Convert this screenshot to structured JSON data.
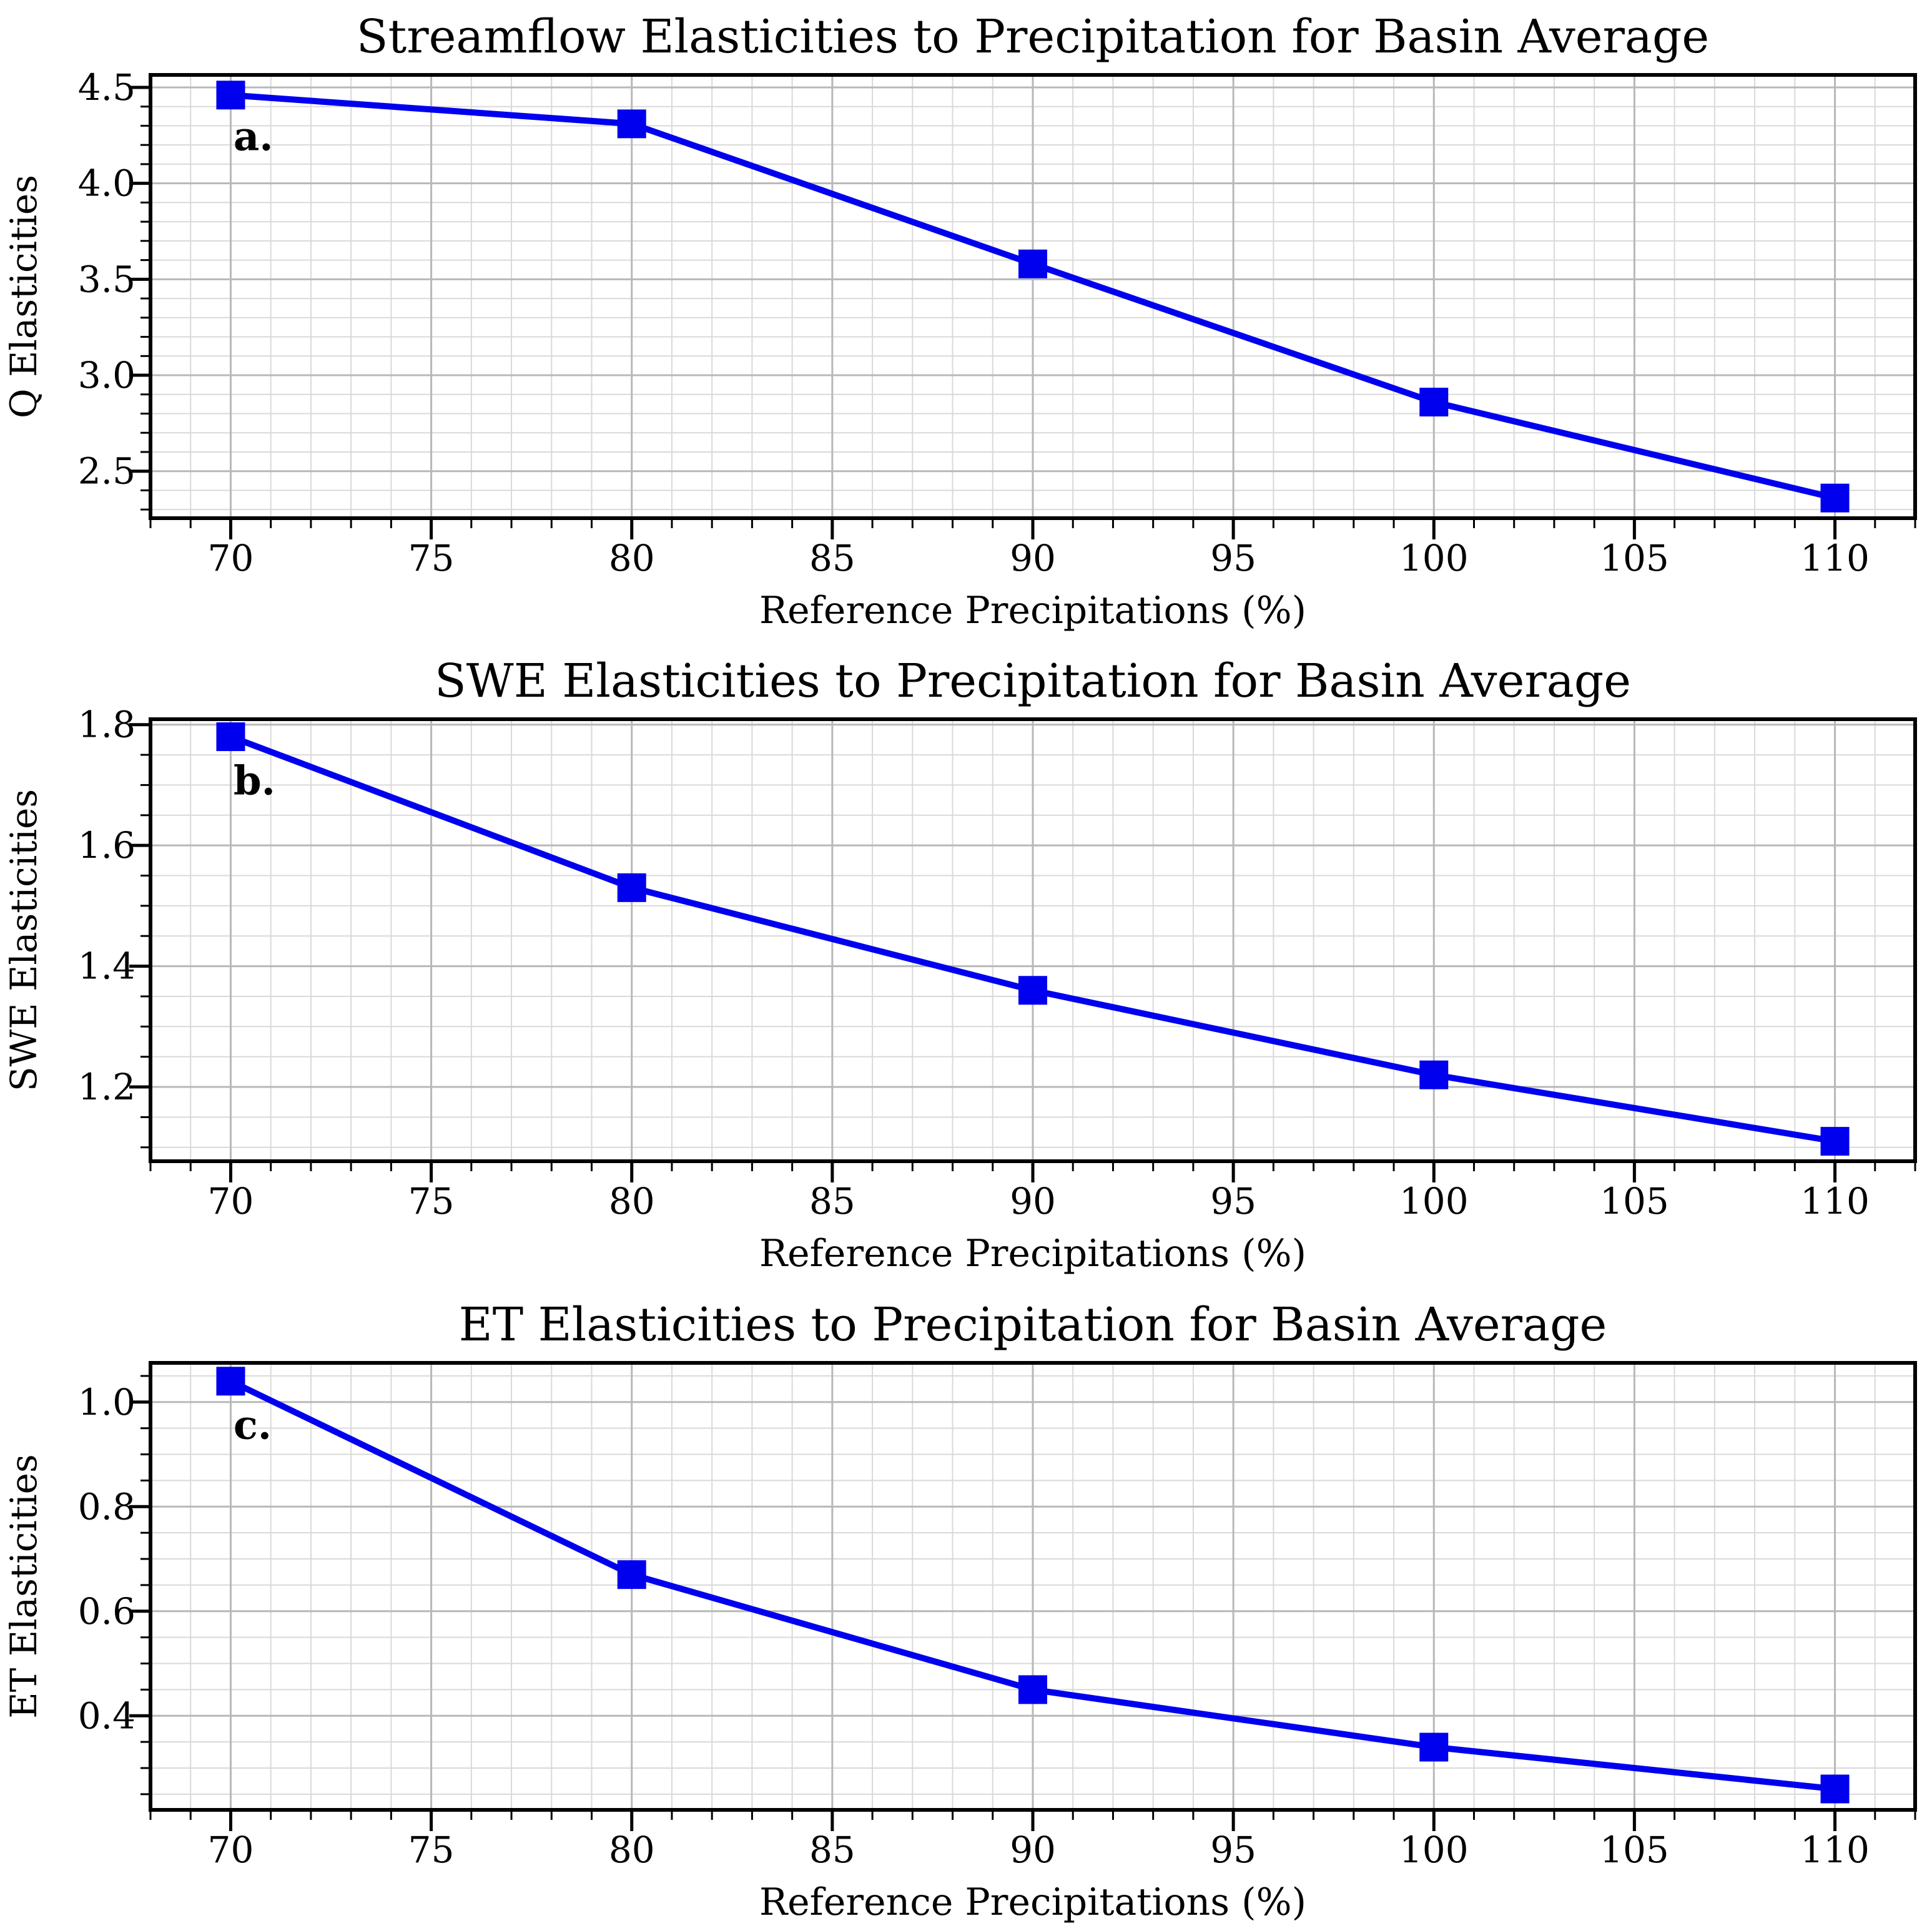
{
  "figure": {
    "background": "#ffffff",
    "accent_color": "#0000ee",
    "grid_major_color": "#b8b8b8",
    "grid_minor_color": "#d9d9d9",
    "spine_color": "#000000"
  },
  "chart_data": [
    {
      "id": "a",
      "type": "line",
      "title": "Streamflow Elasticities to Precipitation for Basin Average",
      "xlabel": "Reference Precipitations (%)",
      "ylabel": "Q Elasticities",
      "annotation": "a.",
      "x": [
        70,
        80,
        90,
        100,
        110
      ],
      "y": [
        4.46,
        4.31,
        3.58,
        2.86,
        2.36
      ],
      "xlim": [
        68,
        112
      ],
      "ylim": [
        2.255,
        4.565
      ],
      "xticks": [
        70,
        75,
        80,
        85,
        90,
        95,
        100,
        105,
        110
      ],
      "xtick_labels": [
        "70",
        "75",
        "80",
        "85",
        "90",
        "95",
        "100",
        "105",
        "110"
      ],
      "yticks": [
        2.5,
        3.0,
        3.5,
        4.0,
        4.5
      ],
      "ytick_labels": [
        "2.5",
        "3.0",
        "3.5",
        "4.0",
        "4.5"
      ],
      "x_minor_step": 1,
      "y_minor_step": 0.1,
      "line_color": "#0000ee",
      "marker": "square",
      "grid": "major+minor",
      "legend": null
    },
    {
      "id": "b",
      "type": "line",
      "title": "SWE Elasticities to Precipitation for Basin Average",
      "xlabel": "Reference Precipitations (%)",
      "ylabel": "SWE Elasticities",
      "annotation": "b.",
      "x": [
        70,
        80,
        90,
        100,
        110
      ],
      "y": [
        1.78,
        1.53,
        1.36,
        1.22,
        1.11
      ],
      "xlim": [
        68,
        112
      ],
      "ylim": [
        1.077,
        1.809
      ],
      "xticks": [
        70,
        75,
        80,
        85,
        90,
        95,
        100,
        105,
        110
      ],
      "xtick_labels": [
        "70",
        "75",
        "80",
        "85",
        "90",
        "95",
        "100",
        "105",
        "110"
      ],
      "yticks": [
        1.2,
        1.4,
        1.6,
        1.8
      ],
      "ytick_labels": [
        "1.2",
        "1.4",
        "1.6",
        "1.8"
      ],
      "x_minor_step": 1,
      "y_minor_step": 0.05,
      "line_color": "#0000ee",
      "marker": "square",
      "grid": "major+minor",
      "legend": null
    },
    {
      "id": "c",
      "type": "line",
      "title": "ET Elasticities to Precipitation for Basin Average",
      "xlabel": "Reference Precipitations (%)",
      "ylabel": "ET Elasticities",
      "annotation": "c.",
      "x": [
        70,
        80,
        90,
        100,
        110
      ],
      "y": [
        1.04,
        0.67,
        0.45,
        0.34,
        0.26
      ],
      "xlim": [
        68,
        112
      ],
      "ylim": [
        0.22,
        1.075
      ],
      "xticks": [
        70,
        75,
        80,
        85,
        90,
        95,
        100,
        105,
        110
      ],
      "xtick_labels": [
        "70",
        "75",
        "80",
        "85",
        "90",
        "95",
        "100",
        "105",
        "110"
      ],
      "yticks": [
        0.4,
        0.6,
        0.8,
        1.0
      ],
      "ytick_labels": [
        "0.4",
        "0.6",
        "0.8",
        "1.0"
      ],
      "x_minor_step": 1,
      "y_minor_step": 0.05,
      "line_color": "#0000ee",
      "marker": "square",
      "grid": "major+minor",
      "legend": null
    }
  ]
}
